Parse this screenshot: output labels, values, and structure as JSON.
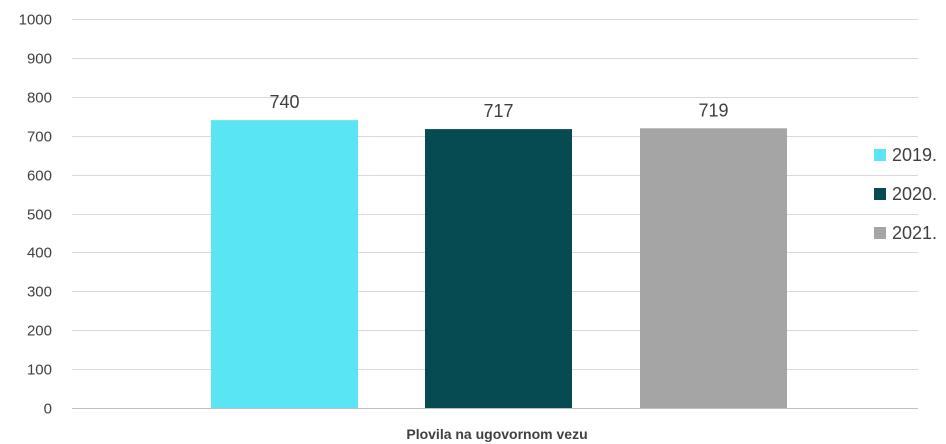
{
  "chart_data": {
    "type": "bar",
    "categories": [
      "Plovila na ugovornom vezu"
    ],
    "series": [
      {
        "name": "2019.",
        "values": [
          740
        ],
        "color": "#5AE5F5"
      },
      {
        "name": "2020.",
        "values": [
          717
        ],
        "color": "#074B52"
      },
      {
        "name": "2021.",
        "values": [
          719
        ],
        "color": "#A5A5A5"
      }
    ],
    "ylim": [
      0,
      1000
    ],
    "yticks": [
      0,
      100,
      200,
      300,
      400,
      500,
      600,
      700,
      800,
      900,
      1000
    ],
    "data_labels": true,
    "grid": true,
    "legend_position": "right",
    "colors": {
      "grid": "#D9D9D9",
      "axis": "#BFBFBF",
      "text": "#404040"
    }
  }
}
